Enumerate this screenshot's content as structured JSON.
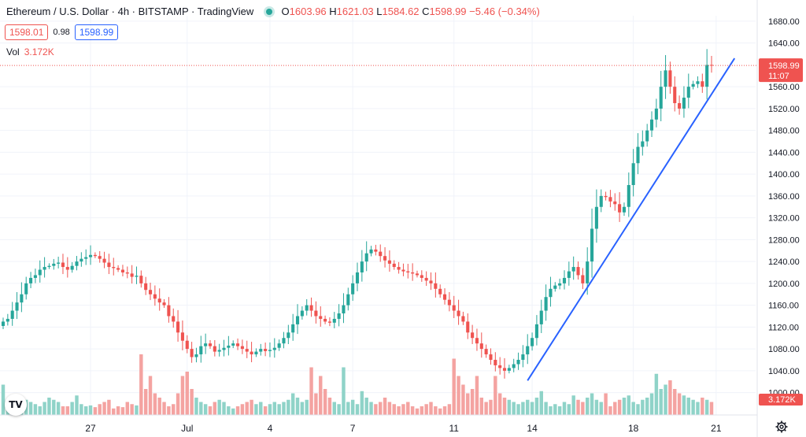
{
  "header": {
    "symbol": "Ethereum / U.S. Dollar · 4h · BITSTAMP · TradingView",
    "open_label": "O",
    "open": "1603.96",
    "high_label": "H",
    "high": "1621.03",
    "low_label": "L",
    "low": "1584.62",
    "close_label": "C",
    "close": "1598.99",
    "change": "−5.46 (−0.34%)"
  },
  "quote": {
    "bid": "1598.01",
    "spread": "0.98",
    "ask": "1598.99"
  },
  "volume": {
    "label": "Vol",
    "value": "3.172K"
  },
  "price_tag": {
    "price": "1598.99",
    "countdown": "11:07"
  },
  "volume_tag": "3.172K",
  "icons": {
    "logo": "tradingview-logo-icon",
    "settings": "gear-icon"
  },
  "colors": {
    "up": "#26a69a",
    "down": "#ef5350",
    "trend": "#2962ff",
    "up_vol": "#8fd3c8",
    "down_vol": "#f4a3a1"
  },
  "chart_data": {
    "type": "candlestick",
    "interval": "4h",
    "y_axis": {
      "ticks": [
        "1000.00",
        "1040.00",
        "1080.00",
        "1120.00",
        "1160.00",
        "1200.00",
        "1240.00",
        "1280.00",
        "1320.00",
        "1360.00",
        "1400.00",
        "1440.00",
        "1480.00",
        "1520.00",
        "1560.00",
        "1640.00",
        "1680.00"
      ],
      "range": [
        985,
        1690
      ]
    },
    "x_axis": {
      "labels": [
        "27",
        "Jul",
        "4",
        "7",
        "11",
        "14",
        "18",
        "21"
      ],
      "label_bar_index": [
        19,
        40,
        58,
        76,
        98,
        115,
        137,
        155
      ]
    },
    "close_series": [
      1130,
      1135,
      1150,
      1165,
      1180,
      1200,
      1210,
      1215,
      1225,
      1230,
      1232,
      1236,
      1238,
      1230,
      1225,
      1232,
      1240,
      1245,
      1248,
      1252,
      1250,
      1245,
      1238,
      1230,
      1228,
      1225,
      1220,
      1218,
      1212,
      1214,
      1200,
      1188,
      1180,
      1172,
      1165,
      1160,
      1140,
      1130,
      1110,
      1095,
      1080,
      1065,
      1070,
      1085,
      1090,
      1085,
      1075,
      1078,
      1082,
      1086,
      1090,
      1085,
      1080,
      1075,
      1070,
      1075,
      1080,
      1076,
      1078,
      1082,
      1090,
      1100,
      1110,
      1125,
      1140,
      1150,
      1160,
      1150,
      1140,
      1135,
      1130,
      1128,
      1135,
      1145,
      1160,
      1180,
      1200,
      1220,
      1240,
      1255,
      1262,
      1258,
      1250,
      1242,
      1236,
      1230,
      1225,
      1222,
      1220,
      1218,
      1215,
      1210,
      1205,
      1200,
      1190,
      1180,
      1170,
      1160,
      1150,
      1140,
      1130,
      1110,
      1100,
      1090,
      1080,
      1070,
      1060,
      1050,
      1045,
      1040,
      1045,
      1052,
      1060,
      1070,
      1085,
      1100,
      1125,
      1150,
      1175,
      1190,
      1196,
      1200,
      1210,
      1222,
      1230,
      1215,
      1200,
      1240,
      1300,
      1340,
      1360,
      1358,
      1350,
      1345,
      1330,
      1340,
      1380,
      1420,
      1450,
      1460,
      1480,
      1500,
      1520,
      1560,
      1590,
      1560,
      1530,
      1520,
      1540,
      1560,
      1565,
      1570,
      1560,
      1600,
      1599
    ],
    "volume_series": [
      0.7,
      0.3,
      0.2,
      0.3,
      0.4,
      0.35,
      0.3,
      0.25,
      0.2,
      0.3,
      0.4,
      0.35,
      0.3,
      0.2,
      0.2,
      0.3,
      0.45,
      0.25,
      0.2,
      0.22,
      0.18,
      0.25,
      0.3,
      0.35,
      0.15,
      0.2,
      0.18,
      0.3,
      0.25,
      0.22,
      1.4,
      0.6,
      0.9,
      0.5,
      0.4,
      0.3,
      0.2,
      0.25,
      0.5,
      0.9,
      1.0,
      0.6,
      0.4,
      0.3,
      0.25,
      0.2,
      0.3,
      0.35,
      0.3,
      0.2,
      0.15,
      0.2,
      0.25,
      0.3,
      0.35,
      0.25,
      0.3,
      0.2,
      0.25,
      0.3,
      0.25,
      0.3,
      0.35,
      0.5,
      0.4,
      0.3,
      0.35,
      1.1,
      0.5,
      0.9,
      0.6,
      0.4,
      0.3,
      0.25,
      1.1,
      0.3,
      0.35,
      0.25,
      0.55,
      0.4,
      0.3,
      0.25,
      0.3,
      0.4,
      0.3,
      0.25,
      0.2,
      0.25,
      0.3,
      0.2,
      0.15,
      0.2,
      0.25,
      0.3,
      0.2,
      0.15,
      0.2,
      0.25,
      1.3,
      0.9,
      0.7,
      0.5,
      0.6,
      0.9,
      0.4,
      0.3,
      0.35,
      0.9,
      0.5,
      0.4,
      0.35,
      0.3,
      0.25,
      0.3,
      0.35,
      0.3,
      0.4,
      0.55,
      0.3,
      0.2,
      0.25,
      0.2,
      0.3,
      0.25,
      0.45,
      0.35,
      0.3,
      0.4,
      0.5,
      0.35,
      0.3,
      0.5,
      0.2,
      0.3,
      0.35,
      0.4,
      0.45,
      0.3,
      0.25,
      0.35,
      0.4,
      0.5,
      0.95,
      0.6,
      0.7,
      0.8,
      0.6,
      0.5,
      0.45,
      0.4,
      0.35,
      0.3,
      0.4,
      0.35,
      0.3
    ],
    "trend_line": {
      "from": {
        "bar": 114,
        "price": 1022
      },
      "to": {
        "bar": 159,
        "price": 1612
      }
    },
    "current_price": 1598.99
  }
}
